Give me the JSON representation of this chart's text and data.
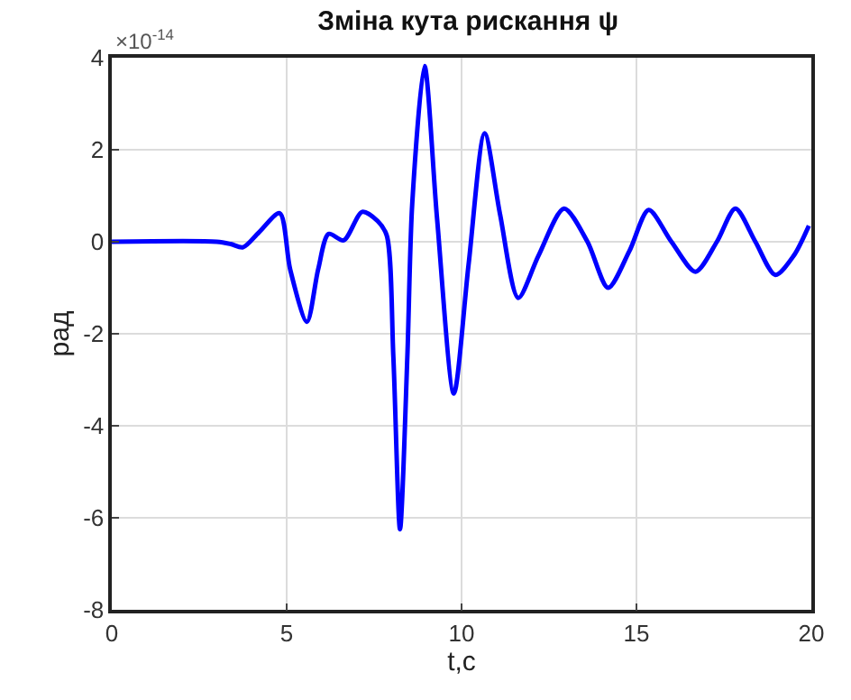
{
  "chart_data": {
    "type": "line",
    "title": "Зміна кута рискання ψ",
    "xlabel": "t,c",
    "ylabel": "рад",
    "annotations": [
      "×10$^{-14}$"
    ],
    "x": [
      0,
      3.0,
      3.4,
      3.75,
      4.2,
      4.8,
      5.1,
      5.58,
      5.9,
      6.2,
      6.63,
      7.16,
      7.6,
      7.86,
      8.05,
      8.24,
      8.45,
      8.59,
      8.94,
      9.3,
      9.78,
      10.2,
      10.66,
      11.1,
      11.62,
      12.2,
      12.93,
      13.6,
      14.19,
      14.8,
      15.35,
      16.0,
      16.69,
      17.3,
      17.83,
      18.4,
      18.97,
      19.5,
      19.93
    ],
    "series": [
      {
        "color": "#0000ff",
        "values": [
          0,
          0,
          -0.05,
          -0.12,
          0.2,
          0.62,
          -0.6,
          -1.74,
          -0.6,
          0.17,
          0.03,
          0.65,
          0.45,
          0.14,
          -2.5,
          -6.25,
          -2.5,
          0.83,
          3.82,
          0.5,
          -3.3,
          -0.5,
          2.36,
          0.6,
          -1.22,
          -0.3,
          0.72,
          0.0,
          -1.0,
          -0.2,
          0.69,
          0.0,
          -0.65,
          0.0,
          0.72,
          0.0,
          -0.72,
          -0.3,
          0.35
        ]
      }
    ],
    "xlim": [
      0,
      20
    ],
    "xticks": [
      0,
      5,
      10,
      15,
      20
    ],
    "ylim": [
      -8,
      4
    ],
    "yticks": [
      -8,
      -6,
      -4,
      -2,
      0,
      2,
      4
    ],
    "grid": true,
    "legend": false,
    "marker": "none",
    "line_style": "solid"
  }
}
